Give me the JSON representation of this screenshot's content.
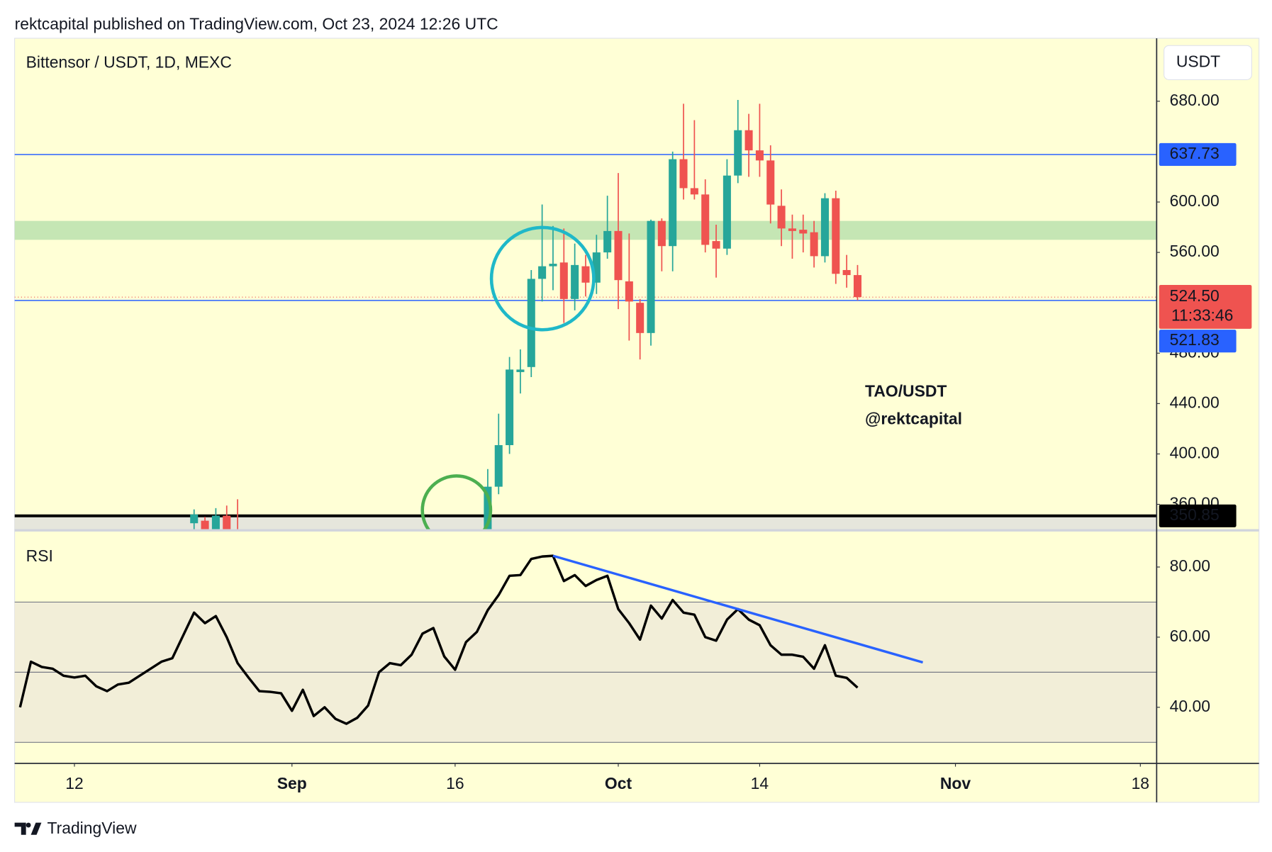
{
  "header": {
    "byline": "rektcapital published on TradingView.com, Oct 23, 2024 12:26 UTC",
    "currency": "USDT",
    "brand": "TradingView"
  },
  "chart_data": [
    {
      "type": "candlestick",
      "title": "Bittensor / USDT, 1D, MEXC",
      "x": [
        "2024-08-23",
        "2024-08-24",
        "2024-08-25",
        "2024-08-26",
        "2024-08-27",
        "2024-09-19",
        "2024-09-20",
        "2024-09-21",
        "2024-09-22",
        "2024-09-23",
        "2024-09-24",
        "2024-09-25",
        "2024-09-26",
        "2024-09-27",
        "2024-09-28",
        "2024-09-29",
        "2024-09-30",
        "2024-10-01",
        "2024-10-02",
        "2024-10-03",
        "2024-10-04",
        "2024-10-05",
        "2024-10-06",
        "2024-10-07",
        "2024-10-08",
        "2024-10-09",
        "2024-10-10",
        "2024-10-11",
        "2024-10-12",
        "2024-10-13",
        "2024-10-14",
        "2024-10-15",
        "2024-10-16",
        "2024-10-17",
        "2024-10-18",
        "2024-10-19",
        "2024-10-20",
        "2024-10-21",
        "2024-10-22",
        "2024-10-23"
      ],
      "open": [
        345,
        347,
        340,
        351,
        338,
        335,
        374,
        407,
        465,
        469,
        539,
        549,
        552,
        523,
        549,
        536,
        560,
        577,
        537,
        520,
        496,
        585,
        565,
        634,
        611,
        606,
        569,
        563,
        621,
        657,
        641,
        633,
        597,
        579,
        578,
        576,
        557,
        603,
        546,
        542
      ],
      "high": [
        356,
        350,
        357,
        359,
        364,
        388,
        432,
        477,
        483,
        546,
        598,
        581,
        579,
        567,
        558,
        574,
        605,
        623,
        575,
        523,
        586,
        587,
        640,
        678,
        665,
        618,
        582,
        634,
        681,
        670,
        678,
        645,
        610,
        590,
        590,
        585,
        607,
        609,
        558,
        550
      ],
      "low": [
        335,
        335,
        332,
        333,
        325,
        330,
        368,
        400,
        448,
        461,
        521,
        530,
        504,
        514,
        525,
        527,
        555,
        515,
        490,
        475,
        486,
        545,
        545,
        602,
        602,
        560,
        540,
        558,
        615,
        620,
        620,
        583,
        565,
        555,
        560,
        548,
        552,
        535,
        532,
        522
      ],
      "close": [
        352,
        338,
        351,
        338,
        330,
        374,
        407,
        467,
        467,
        539,
        549,
        551,
        523,
        550,
        536,
        560,
        577,
        538,
        521,
        496,
        585,
        565,
        634,
        611,
        606,
        566,
        563,
        621,
        657,
        641,
        633,
        598,
        579,
        577,
        575,
        557,
        603,
        543,
        542,
        524.5
      ],
      "up_color": "#26a69a",
      "down_color": "#ef5350",
      "xlim": [
        "2024-08-07",
        "2024-11-20"
      ],
      "xticks": [
        {
          "value": "2024-08-12",
          "label": "12"
        },
        {
          "value": "2024-09-01",
          "label": "Sep"
        },
        {
          "value": "2024-09-16",
          "label": "16"
        },
        {
          "value": "2024-10-01",
          "label": "Oct"
        },
        {
          "value": "2024-10-14",
          "label": "14"
        },
        {
          "value": "2024-11-01",
          "label": "Nov"
        },
        {
          "value": "2024-11-18",
          "label": "18"
        }
      ],
      "ylim": [
        340,
        730
      ],
      "yticks": [
        {
          "value": 360,
          "label": "360.00"
        },
        {
          "value": 400,
          "label": "400.00"
        },
        {
          "value": 440,
          "label": "440.00"
        },
        {
          "value": 480,
          "label": "480.00"
        },
        {
          "value": 560,
          "label": "560.00"
        },
        {
          "value": 600,
          "label": "600.00"
        },
        {
          "value": 680,
          "label": "680.00"
        }
      ],
      "zone": {
        "from": 570,
        "to": 585,
        "color": "#c5e6b4"
      },
      "levels": [
        {
          "value": 637.73,
          "color": "#2962ff"
        },
        {
          "value": 521.83,
          "color": "#2962ff"
        },
        {
          "value": 350.85,
          "color": "#000000"
        }
      ],
      "last_price": {
        "value": 524.5,
        "label": "524.50",
        "countdown": "11:33:46",
        "color": "#ef5350"
      },
      "annotations": [
        "TAO/USDT",
        "@rektcapital"
      ]
    },
    {
      "type": "line",
      "title": "RSI",
      "x": [
        "2024-08-07",
        "2024-08-08",
        "2024-08-09",
        "2024-08-10",
        "2024-08-11",
        "2024-08-12",
        "2024-08-13",
        "2024-08-14",
        "2024-08-15",
        "2024-08-16",
        "2024-08-17",
        "2024-08-18",
        "2024-08-19",
        "2024-08-20",
        "2024-08-21",
        "2024-08-22",
        "2024-08-23",
        "2024-08-24",
        "2024-08-25",
        "2024-08-26",
        "2024-08-27",
        "2024-08-28",
        "2024-08-29",
        "2024-08-30",
        "2024-08-31",
        "2024-09-01",
        "2024-09-02",
        "2024-09-03",
        "2024-09-04",
        "2024-09-05",
        "2024-09-06",
        "2024-09-07",
        "2024-09-08",
        "2024-09-09",
        "2024-09-10",
        "2024-09-11",
        "2024-09-12",
        "2024-09-13",
        "2024-09-14",
        "2024-09-15",
        "2024-09-16",
        "2024-09-17",
        "2024-09-18",
        "2024-09-19",
        "2024-09-20",
        "2024-09-21",
        "2024-09-22",
        "2024-09-23",
        "2024-09-24",
        "2024-09-25",
        "2024-09-26",
        "2024-09-27",
        "2024-09-28",
        "2024-09-29",
        "2024-09-30",
        "2024-10-01",
        "2024-10-02",
        "2024-10-03",
        "2024-10-04",
        "2024-10-05",
        "2024-10-06",
        "2024-10-07",
        "2024-10-08",
        "2024-10-09",
        "2024-10-10",
        "2024-10-11",
        "2024-10-12",
        "2024-10-13",
        "2024-10-14",
        "2024-10-15",
        "2024-10-16",
        "2024-10-17",
        "2024-10-18",
        "2024-10-19",
        "2024-10-20",
        "2024-10-21",
        "2024-10-22",
        "2024-10-23"
      ],
      "values": [
        40,
        53,
        51.5,
        51,
        49,
        48.5,
        49,
        46,
        44.6,
        46.5,
        47,
        49,
        51,
        53,
        54,
        60.5,
        67,
        64,
        66,
        60,
        52.6,
        48.5,
        44.6,
        44.4,
        44,
        39,
        45,
        37.5,
        40,
        36.7,
        35.3,
        37,
        40.5,
        50,
        52.6,
        52,
        55,
        61,
        62.6,
        54.5,
        50.7,
        58.6,
        61.5,
        67.7,
        72,
        77.5,
        77.7,
        82.3,
        83,
        83.2,
        76,
        77.7,
        74.6,
        76.3,
        77.5,
        68,
        64,
        59.3,
        69,
        65.3,
        70.6,
        67,
        66.4,
        60,
        59,
        65,
        68,
        65,
        63.4,
        57.7,
        55,
        55,
        54.4,
        51,
        57.7,
        49,
        48.4,
        45.6
      ],
      "color": "#000000",
      "ylim": [
        24,
        90
      ],
      "yticks": [
        {
          "value": 40,
          "label": "40.00"
        },
        {
          "value": 60,
          "label": "60.00"
        },
        {
          "value": 80,
          "label": "80.00"
        }
      ],
      "bands": [
        30,
        50,
        70
      ],
      "band_color": "#f2eed8",
      "trendline": {
        "x": [
          "2024-09-25",
          "2024-10-29"
        ],
        "values": [
          83.2,
          52.8
        ],
        "color": "#2962ff"
      }
    }
  ]
}
